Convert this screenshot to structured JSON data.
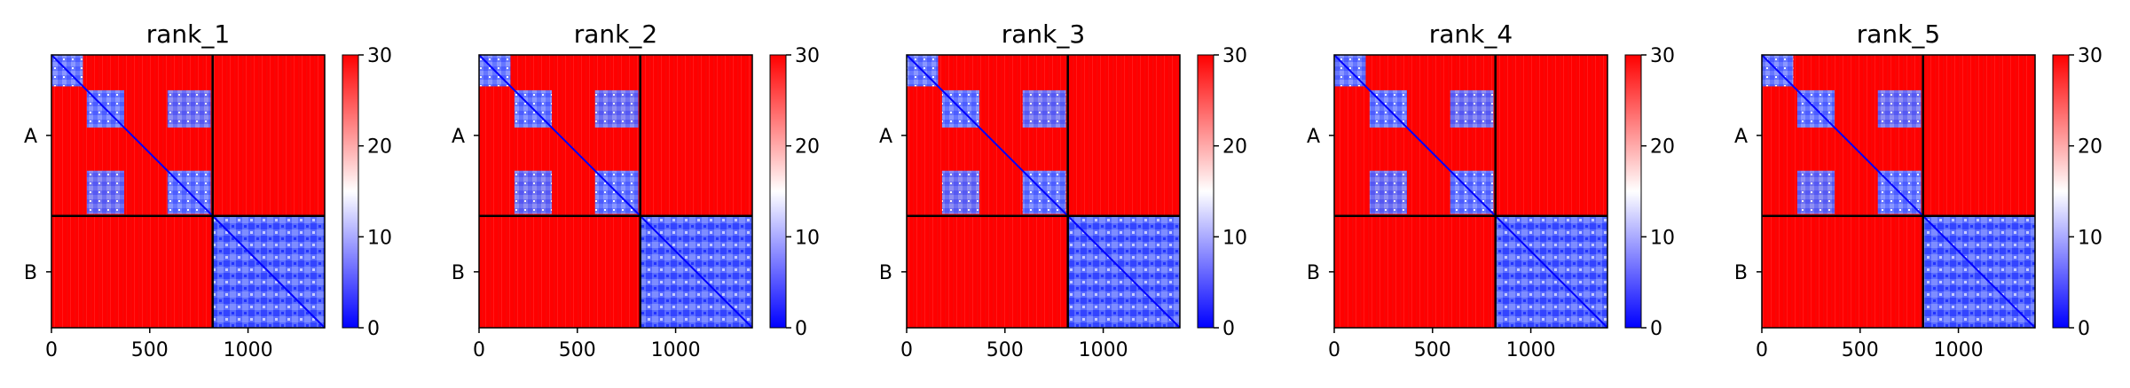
{
  "colors": {
    "low": "#0000ff",
    "mid": "#ffffff",
    "high": "#ff0000",
    "divider": "#000000"
  },
  "chart_data": [
    {
      "type": "heatmap",
      "title": "rank_1",
      "chains": [
        {
          "label": "A",
          "start": 0,
          "end": 820
        },
        {
          "label": "B",
          "start": 820,
          "end": 1390
        }
      ],
      "xlim": [
        0,
        1390
      ],
      "xticks": [
        {
          "value": 0,
          "label": "0"
        },
        {
          "value": 500,
          "label": "500"
        },
        {
          "value": 1000,
          "label": "1000"
        }
      ],
      "colorbar": {
        "min": 0,
        "max": 30,
        "ticks": [
          {
            "value": 0,
            "label": "0"
          },
          {
            "value": 10,
            "label": "10"
          },
          {
            "value": 20,
            "label": "20"
          },
          {
            "value": 30,
            "label": "30"
          }
        ],
        "colormap": "bwr"
      },
      "intra_blocks": [
        {
          "start": 0,
          "end": 160
        },
        {
          "start": 180,
          "end": 370
        },
        {
          "start": 590,
          "end": 810
        },
        {
          "start": 820,
          "end": 1390
        }
      ],
      "inter_blocks": [
        {
          "a_start": 180,
          "a_end": 370,
          "b_start": 590,
          "b_end": 810
        }
      ]
    },
    {
      "type": "heatmap",
      "title": "rank_2",
      "chains": [
        {
          "label": "A",
          "start": 0,
          "end": 820
        },
        {
          "label": "B",
          "start": 820,
          "end": 1390
        }
      ],
      "xlim": [
        0,
        1390
      ],
      "xticks": [
        {
          "value": 0,
          "label": "0"
        },
        {
          "value": 500,
          "label": "500"
        },
        {
          "value": 1000,
          "label": "1000"
        }
      ],
      "colorbar": {
        "min": 0,
        "max": 30,
        "ticks": [
          {
            "value": 0,
            "label": "0"
          },
          {
            "value": 10,
            "label": "10"
          },
          {
            "value": 20,
            "label": "20"
          },
          {
            "value": 30,
            "label": "30"
          }
        ],
        "colormap": "bwr"
      },
      "intra_blocks": [
        {
          "start": 0,
          "end": 160
        },
        {
          "start": 180,
          "end": 370
        },
        {
          "start": 590,
          "end": 810
        },
        {
          "start": 820,
          "end": 1390
        }
      ],
      "inter_blocks": [
        {
          "a_start": 180,
          "a_end": 370,
          "b_start": 590,
          "b_end": 810
        }
      ]
    },
    {
      "type": "heatmap",
      "title": "rank_3",
      "chains": [
        {
          "label": "A",
          "start": 0,
          "end": 820
        },
        {
          "label": "B",
          "start": 820,
          "end": 1390
        }
      ],
      "xlim": [
        0,
        1390
      ],
      "xticks": [
        {
          "value": 0,
          "label": "0"
        },
        {
          "value": 500,
          "label": "500"
        },
        {
          "value": 1000,
          "label": "1000"
        }
      ],
      "colorbar": {
        "min": 0,
        "max": 30,
        "ticks": [
          {
            "value": 0,
            "label": "0"
          },
          {
            "value": 10,
            "label": "10"
          },
          {
            "value": 20,
            "label": "20"
          },
          {
            "value": 30,
            "label": "30"
          }
        ],
        "colormap": "bwr"
      },
      "intra_blocks": [
        {
          "start": 0,
          "end": 160
        },
        {
          "start": 180,
          "end": 370
        },
        {
          "start": 590,
          "end": 810
        },
        {
          "start": 820,
          "end": 1390
        }
      ],
      "inter_blocks": [
        {
          "a_start": 180,
          "a_end": 370,
          "b_start": 590,
          "b_end": 810
        }
      ]
    },
    {
      "type": "heatmap",
      "title": "rank_4",
      "chains": [
        {
          "label": "A",
          "start": 0,
          "end": 820
        },
        {
          "label": "B",
          "start": 820,
          "end": 1390
        }
      ],
      "xlim": [
        0,
        1390
      ],
      "xticks": [
        {
          "value": 0,
          "label": "0"
        },
        {
          "value": 500,
          "label": "500"
        },
        {
          "value": 1000,
          "label": "1000"
        }
      ],
      "colorbar": {
        "min": 0,
        "max": 30,
        "ticks": [
          {
            "value": 0,
            "label": "0"
          },
          {
            "value": 10,
            "label": "10"
          },
          {
            "value": 20,
            "label": "20"
          },
          {
            "value": 30,
            "label": "30"
          }
        ],
        "colormap": "bwr"
      },
      "intra_blocks": [
        {
          "start": 0,
          "end": 160
        },
        {
          "start": 180,
          "end": 370
        },
        {
          "start": 590,
          "end": 810
        },
        {
          "start": 820,
          "end": 1390
        }
      ],
      "inter_blocks": [
        {
          "a_start": 180,
          "a_end": 370,
          "b_start": 590,
          "b_end": 810
        }
      ]
    },
    {
      "type": "heatmap",
      "title": "rank_5",
      "chains": [
        {
          "label": "A",
          "start": 0,
          "end": 820
        },
        {
          "label": "B",
          "start": 820,
          "end": 1390
        }
      ],
      "xlim": [
        0,
        1390
      ],
      "xticks": [
        {
          "value": 0,
          "label": "0"
        },
        {
          "value": 500,
          "label": "500"
        },
        {
          "value": 1000,
          "label": "1000"
        }
      ],
      "colorbar": {
        "min": 0,
        "max": 30,
        "ticks": [
          {
            "value": 0,
            "label": "0"
          },
          {
            "value": 10,
            "label": "10"
          },
          {
            "value": 20,
            "label": "20"
          },
          {
            "value": 30,
            "label": "30"
          }
        ],
        "colormap": "bwr"
      },
      "intra_blocks": [
        {
          "start": 0,
          "end": 160
        },
        {
          "start": 180,
          "end": 370
        },
        {
          "start": 590,
          "end": 810
        },
        {
          "start": 820,
          "end": 1390
        }
      ],
      "inter_blocks": [
        {
          "a_start": 180,
          "a_end": 370,
          "b_start": 590,
          "b_end": 810
        }
      ]
    }
  ]
}
